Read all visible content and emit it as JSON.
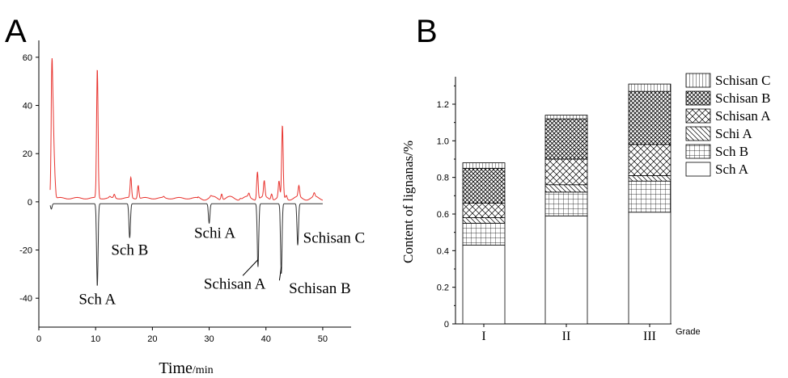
{
  "chart_data": [
    {
      "panel_label": "A",
      "type": "line",
      "xlabel": "Time/min",
      "xlabel_main": "Time",
      "xlabel_unit": "/min",
      "xlim": [
        0,
        55
      ],
      "ylim": [
        -52,
        67
      ],
      "xticks": [
        0,
        10,
        20,
        30,
        40,
        50
      ],
      "yticks": [
        -40,
        -20,
        0,
        20,
        40,
        60
      ],
      "series": [
        {
          "color": "#e8332e",
          "baseline": 1.5,
          "peaks": [
            {
              "x": 2.3,
              "y": 55
            },
            {
              "x": 2.55,
              "y": 28
            },
            {
              "x": 2.8,
              "y": 10
            },
            {
              "x": 10.3,
              "y": 55
            },
            {
              "x": 12.5,
              "y": 2
            },
            {
              "x": 13.3,
              "y": 3
            },
            {
              "x": 16.2,
              "y": 10
            },
            {
              "x": 17.5,
              "y": 7
            },
            {
              "x": 22.0,
              "y": 2
            },
            {
              "x": 30.3,
              "y": 2
            },
            {
              "x": 32.2,
              "y": 4
            },
            {
              "x": 35.5,
              "y": 2
            },
            {
              "x": 37.0,
              "y": 3
            },
            {
              "x": 38.5,
              "y": 13
            },
            {
              "x": 39.7,
              "y": 8
            },
            {
              "x": 41.0,
              "y": 4
            },
            {
              "x": 42.3,
              "y": 8
            },
            {
              "x": 42.9,
              "y": 31
            },
            {
              "x": 43.6,
              "y": 3
            },
            {
              "x": 45.8,
              "y": 6
            },
            {
              "x": 48.5,
              "y": 3
            }
          ]
        },
        {
          "color": "#333333",
          "baseline": -0.8,
          "peaks": [
            {
              "x": 2.2,
              "y": -3
            },
            {
              "x": 10.3,
              "y": -35
            },
            {
              "x": 16.0,
              "y": -15
            },
            {
              "x": 30.0,
              "y": -9
            },
            {
              "x": 38.6,
              "y": -27
            },
            {
              "x": 42.7,
              "y": -30
            },
            {
              "x": 45.6,
              "y": -18
            }
          ]
        }
      ],
      "annotations": [
        {
          "text": "Sch A",
          "x": 10.3,
          "y": -42.5
        },
        {
          "text": "Sch B",
          "x": 16.0,
          "y": -22
        },
        {
          "text": "Schi A",
          "x": 31.0,
          "y": -15
        },
        {
          "text": "Schisan A",
          "x": 34.5,
          "y": -36
        },
        {
          "text": "Schisan B",
          "x": 49.5,
          "y": -38
        },
        {
          "text": "Schisan C",
          "x": 52.0,
          "y": -17
        }
      ]
    },
    {
      "panel_label": "B",
      "type": "bar",
      "stacked": true,
      "categories": [
        "I",
        "II",
        "III"
      ],
      "xlabel": "Grade",
      "ylabel": "Content of lignanas/%",
      "ylim": [
        0,
        1.35
      ],
      "yticks": [
        0,
        0.2,
        0.4,
        0.6,
        0.8,
        1.0,
        1.2
      ],
      "ytick_labels": [
        "0",
        "0.2",
        "0.4",
        "0.6",
        "0.8",
        "1.0",
        "1.2"
      ],
      "legend_position": "right",
      "series": [
        {
          "name": "Sch A",
          "pattern": "blank",
          "values": [
            0.43,
            0.59,
            0.61
          ]
        },
        {
          "name": "Sch B",
          "pattern": "grid",
          "values": [
            0.12,
            0.13,
            0.17
          ]
        },
        {
          "name": "Schi A",
          "pattern": "diagonal",
          "values": [
            0.03,
            0.04,
            0.03
          ]
        },
        {
          "name": "Schisan A",
          "pattern": "crosshatch",
          "values": [
            0.08,
            0.14,
            0.17
          ]
        },
        {
          "name": "Schisan B",
          "pattern": "crosshatch-dense",
          "values": [
            0.19,
            0.22,
            0.29
          ]
        },
        {
          "name": "Schisan C",
          "pattern": "vertical",
          "values": [
            0.03,
            0.02,
            0.04
          ]
        }
      ]
    }
  ]
}
